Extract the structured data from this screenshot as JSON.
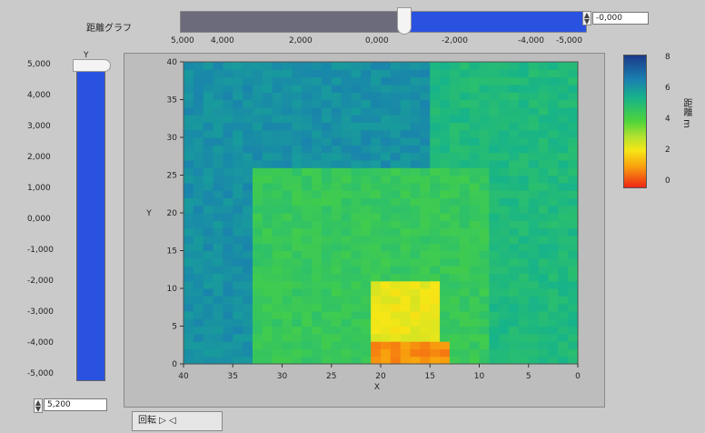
{
  "window": {
    "title": "距離グラフ"
  },
  "top_slider": {
    "ticks": [
      "5,000",
      "4,000",
      "2,000",
      "0,000",
      "-2,000",
      "-4,000",
      "-5,000"
    ],
    "value_label": "-0,000"
  },
  "left_slider": {
    "axis_label": "Y",
    "ticks": [
      "5,000",
      "4,000",
      "3,000",
      "2,000",
      "1,000",
      "0,000",
      "-1,000",
      "-2,000",
      "-3,000",
      "-4,000",
      "-5,000"
    ],
    "value_label": "5,200"
  },
  "legend_tab": {
    "label": "回転 ▷ ◁"
  },
  "colorbar": {
    "label": "距離 m",
    "ticks": [
      "8",
      "6",
      "4",
      "2",
      "0"
    ]
  },
  "chart_data": {
    "type": "heatmap",
    "title": "",
    "xlabel": "X",
    "ylabel": "Y",
    "x_ticks": [
      40,
      35,
      30,
      25,
      20,
      15,
      10,
      5,
      0
    ],
    "y_ticks": [
      0,
      5,
      10,
      15,
      20,
      25,
      30,
      35,
      40
    ],
    "xlim": [
      40,
      0
    ],
    "ylim": [
      0,
      40
    ],
    "zlim": [
      0,
      8
    ],
    "regions": [
      {
        "name": "background",
        "x": [
          40,
          0
        ],
        "y": [
          0,
          40
        ],
        "value": 6.2
      },
      {
        "name": "right-band",
        "x": [
          15,
          0
        ],
        "y": [
          0,
          40
        ],
        "value": 5.2
      },
      {
        "name": "center-block",
        "x": [
          33,
          9
        ],
        "y": [
          0,
          26
        ],
        "value": 4.6
      },
      {
        "name": "inner-orange",
        "x": [
          21,
          14
        ],
        "y": [
          0,
          11
        ],
        "value": 2.4
      },
      {
        "name": "inner-red",
        "x": [
          21,
          13
        ],
        "y": [
          0,
          3
        ],
        "value": 1.1
      }
    ]
  }
}
